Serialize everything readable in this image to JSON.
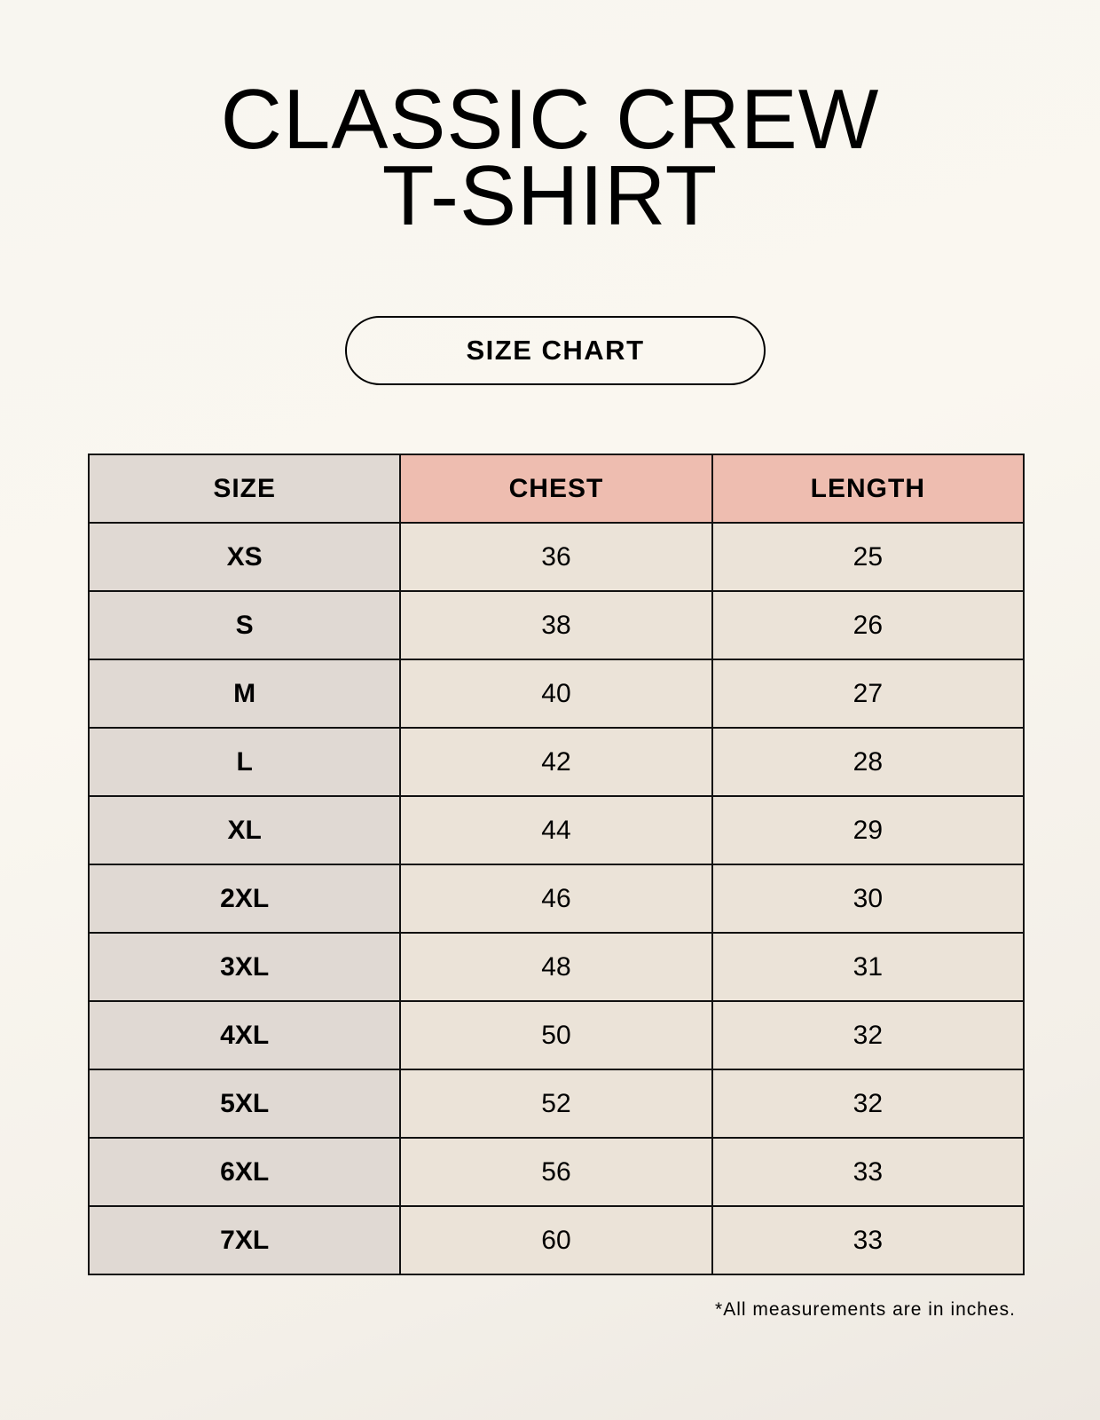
{
  "title_lines": [
    "CLASSIC CREW",
    "T-SHIRT"
  ],
  "subtitle": "SIZE CHART",
  "table": {
    "headers": [
      "SIZE",
      "CHEST",
      "LENGTH"
    ],
    "rows": [
      [
        "XS",
        "36",
        "25"
      ],
      [
        "S",
        "38",
        "26"
      ],
      [
        "M",
        "40",
        "27"
      ],
      [
        "L",
        "42",
        "28"
      ],
      [
        "XL",
        "44",
        "29"
      ],
      [
        "2XL",
        "46",
        "30"
      ],
      [
        "3XL",
        "48",
        "31"
      ],
      [
        "4XL",
        "50",
        "32"
      ],
      [
        "5XL",
        "52",
        "32"
      ],
      [
        "6XL",
        "56",
        "33"
      ],
      [
        "7XL",
        "60",
        "33"
      ]
    ]
  },
  "footnote": "*All measurements are in inches.",
  "colors": {
    "header_accent": "#eebdb0",
    "size_column": "#e0d9d3",
    "value_cells": "#ebe3d8"
  }
}
